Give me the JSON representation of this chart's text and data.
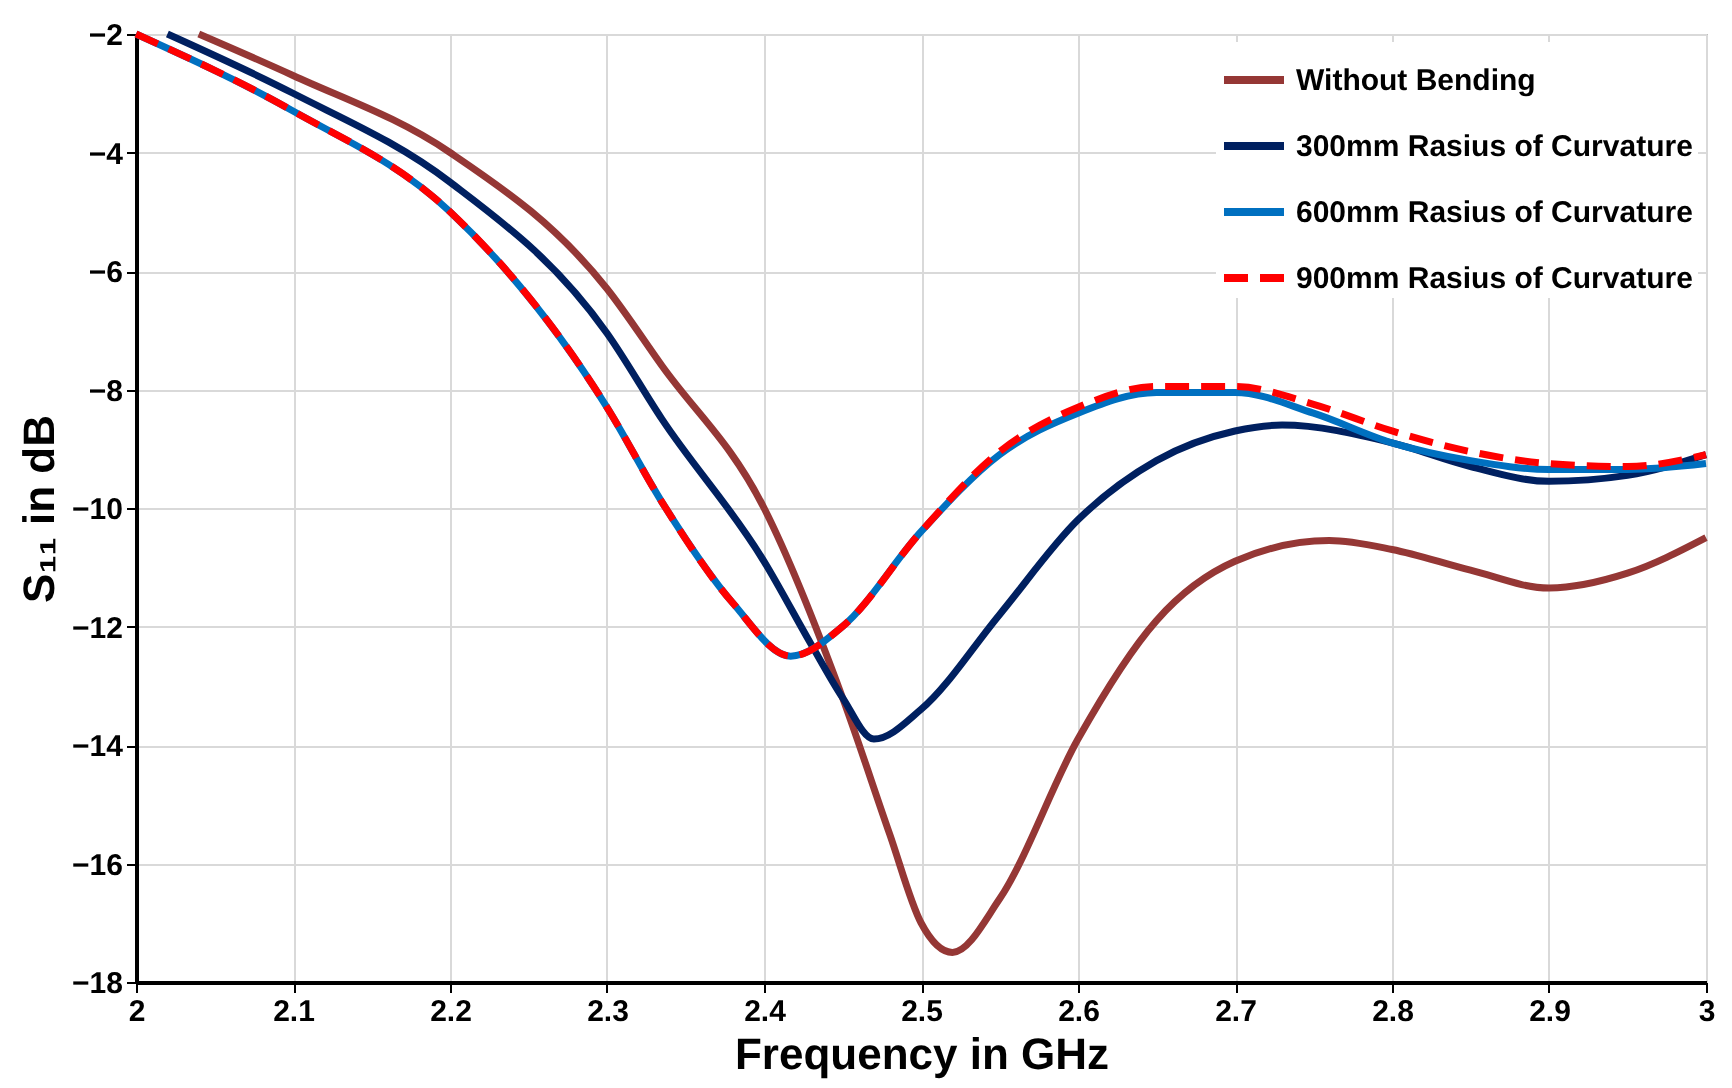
{
  "chart_data": {
    "type": "line",
    "xlabel": "Frequency in GHz",
    "ylabel": "S₁₁ in dB",
    "xlim": [
      2,
      3
    ],
    "xticks": [
      2,
      2.1,
      2.2,
      2.3,
      2.4,
      2.5,
      2.6,
      2.7,
      2.8,
      2.9,
      3
    ],
    "ylim": [
      -18,
      -2
    ],
    "yticks": [
      -18,
      -16,
      -14,
      -12,
      -10,
      -8,
      -6,
      -4,
      -2
    ],
    "grid": true,
    "legend": "top right",
    "marker": "none",
    "series": [
      {
        "name": "Without Bending",
        "color": "#953735",
        "line_style": "solid",
        "x": [
          2.04,
          2.1,
          2.2,
          2.3,
          2.335,
          2.4,
          2.45,
          2.48,
          2.5,
          2.52,
          2.55,
          2.6,
          2.65,
          2.7,
          2.76,
          2.8,
          2.85,
          2.9,
          2.95,
          3.0
        ],
        "values": [
          -2,
          -2.7,
          -4.0,
          -6.3,
          -7.6,
          -10.0,
          -13.2,
          -15.5,
          -17.0,
          -17.5,
          -16.6,
          -13.9,
          -11.9,
          -10.9,
          -10.55,
          -10.7,
          -11.05,
          -11.35,
          -11.1,
          -10.5
        ]
      },
      {
        "name": "300mm Rasius of Curvature",
        "color": "#002060",
        "line_style": "solid",
        "x": [
          2.02,
          2.1,
          2.2,
          2.3,
          2.335,
          2.4,
          2.43,
          2.45,
          2.47,
          2.5,
          2.55,
          2.6,
          2.65,
          2.7,
          2.73,
          2.8,
          2.85,
          2.9,
          2.95,
          3.0
        ],
        "values": [
          -2,
          -3.0,
          -4.5,
          -7.05,
          -8.5,
          -10.9,
          -12.3,
          -13.2,
          -13.9,
          -13.4,
          -11.8,
          -10.2,
          -9.2,
          -8.7,
          -8.6,
          -8.9,
          -9.3,
          -9.55,
          -9.45,
          -9.1
        ]
      },
      {
        "name": "600mm Rasius of Curvature",
        "color": "#0070c0",
        "line_style": "solid",
        "x": [
          2.0,
          2.1,
          2.2,
          2.3,
          2.335,
          2.38,
          2.417,
          2.45,
          2.5,
          2.55,
          2.6,
          2.65,
          2.7,
          2.75,
          2.8,
          2.85,
          2.9,
          2.95,
          3.0
        ],
        "values": [
          -2,
          -3.3,
          -5.0,
          -8.3,
          -9.9,
          -11.6,
          -12.5,
          -12.0,
          -10.4,
          -9.1,
          -8.4,
          -8.05,
          -8.05,
          -8.4,
          -8.9,
          -9.2,
          -9.35,
          -9.35,
          -9.25
        ]
      },
      {
        "name": "900mm Rasius of Curvature",
        "color": "#ff0000",
        "line_style": "dashed",
        "x": [
          2.0,
          2.1,
          2.2,
          2.3,
          2.335,
          2.38,
          2.417,
          2.45,
          2.5,
          2.55,
          2.6,
          2.65,
          2.7,
          2.75,
          2.8,
          2.85,
          2.9,
          2.95,
          3.0
        ],
        "values": [
          -2,
          -3.3,
          -5.0,
          -8.3,
          -9.9,
          -11.6,
          -12.5,
          -12.0,
          -10.4,
          -9.05,
          -8.3,
          -7.95,
          -7.95,
          -8.25,
          -8.7,
          -9.05,
          -9.25,
          -9.3,
          -9.1
        ]
      }
    ]
  }
}
